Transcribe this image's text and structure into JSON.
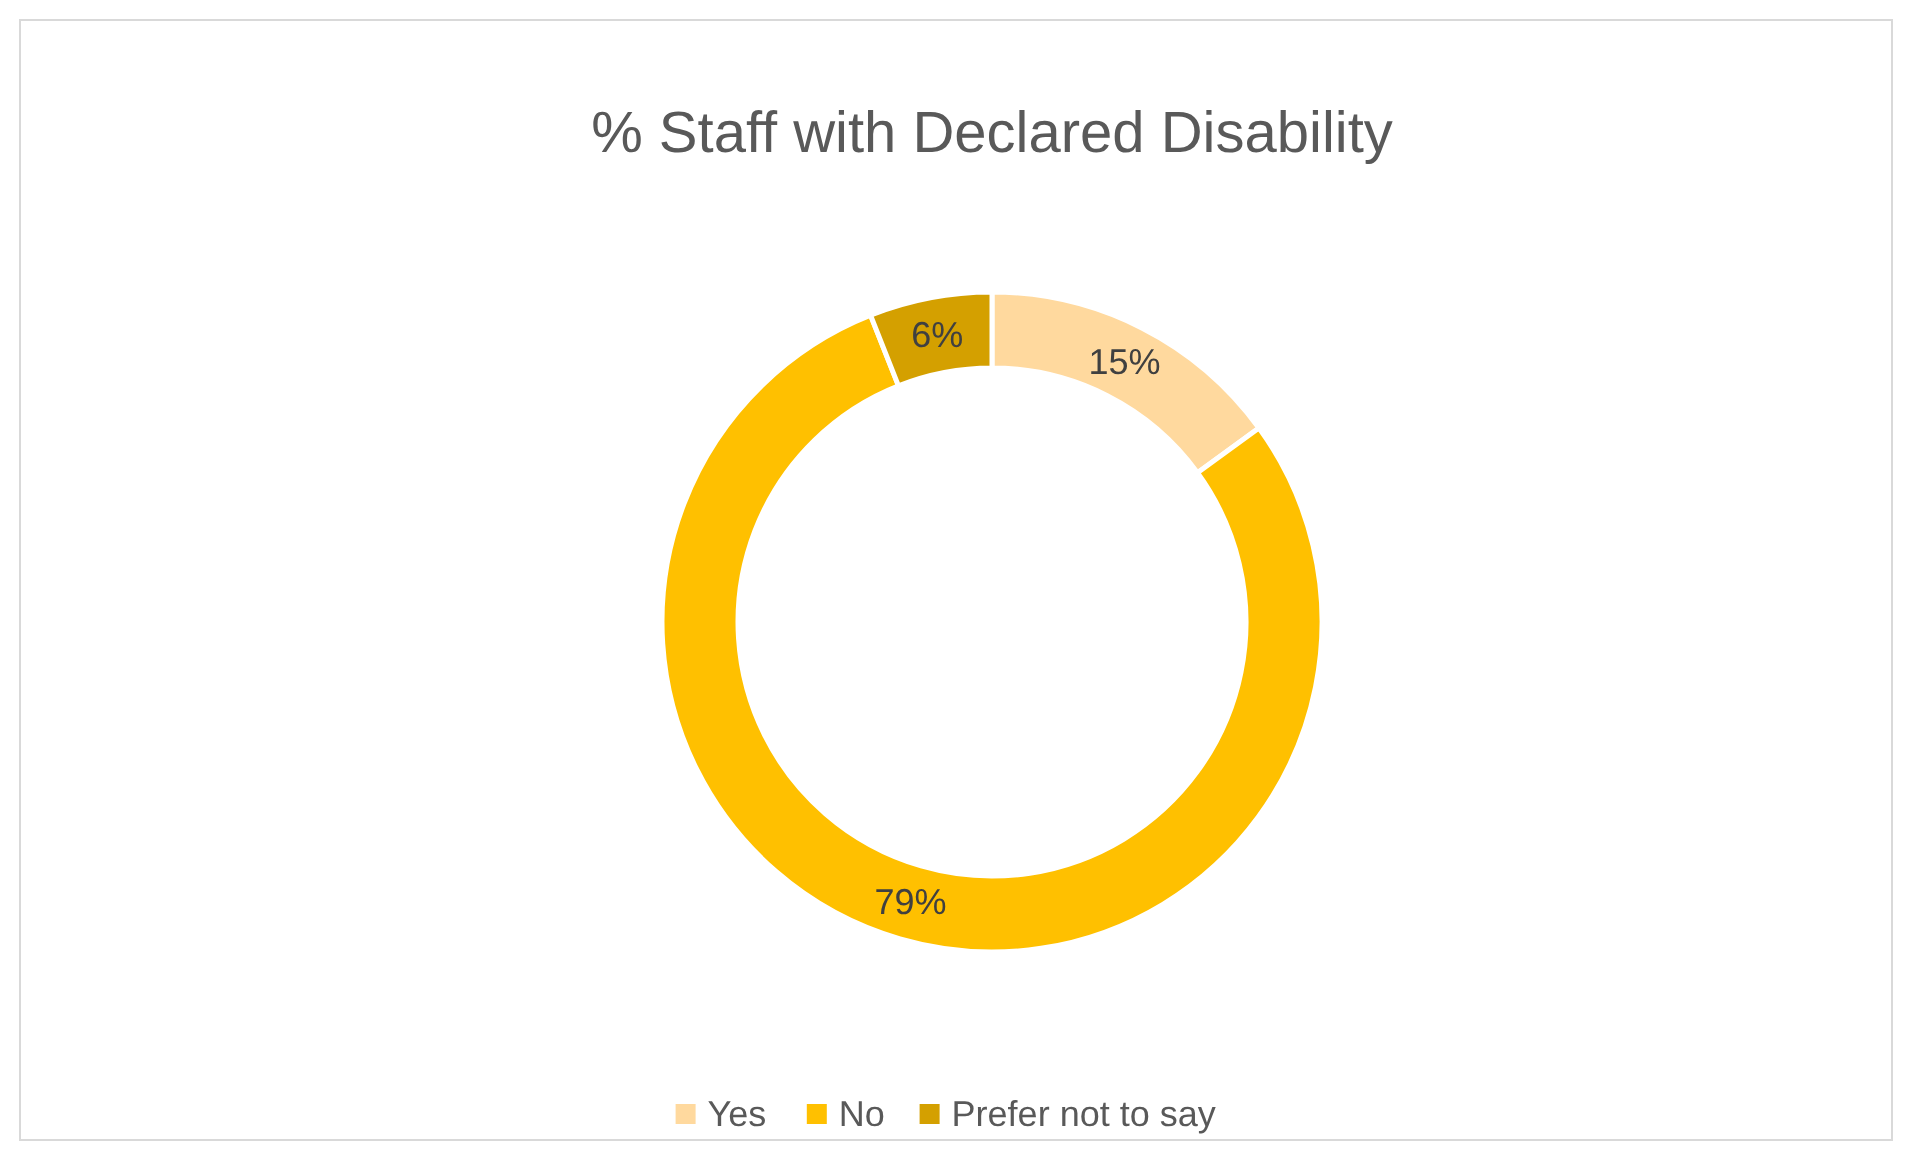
{
  "chart_data": {
    "type": "donut",
    "title": "% Staff with Declared Disability",
    "categories": [
      "Yes",
      "No",
      "Prefer not to say"
    ],
    "values": [
      15,
      79,
      6
    ],
    "colors": [
      "#ffd99e",
      "#ffc000",
      "#d4a000"
    ],
    "value_labels": [
      "15%",
      "79%",
      "6%"
    ],
    "legend": "bottom"
  }
}
